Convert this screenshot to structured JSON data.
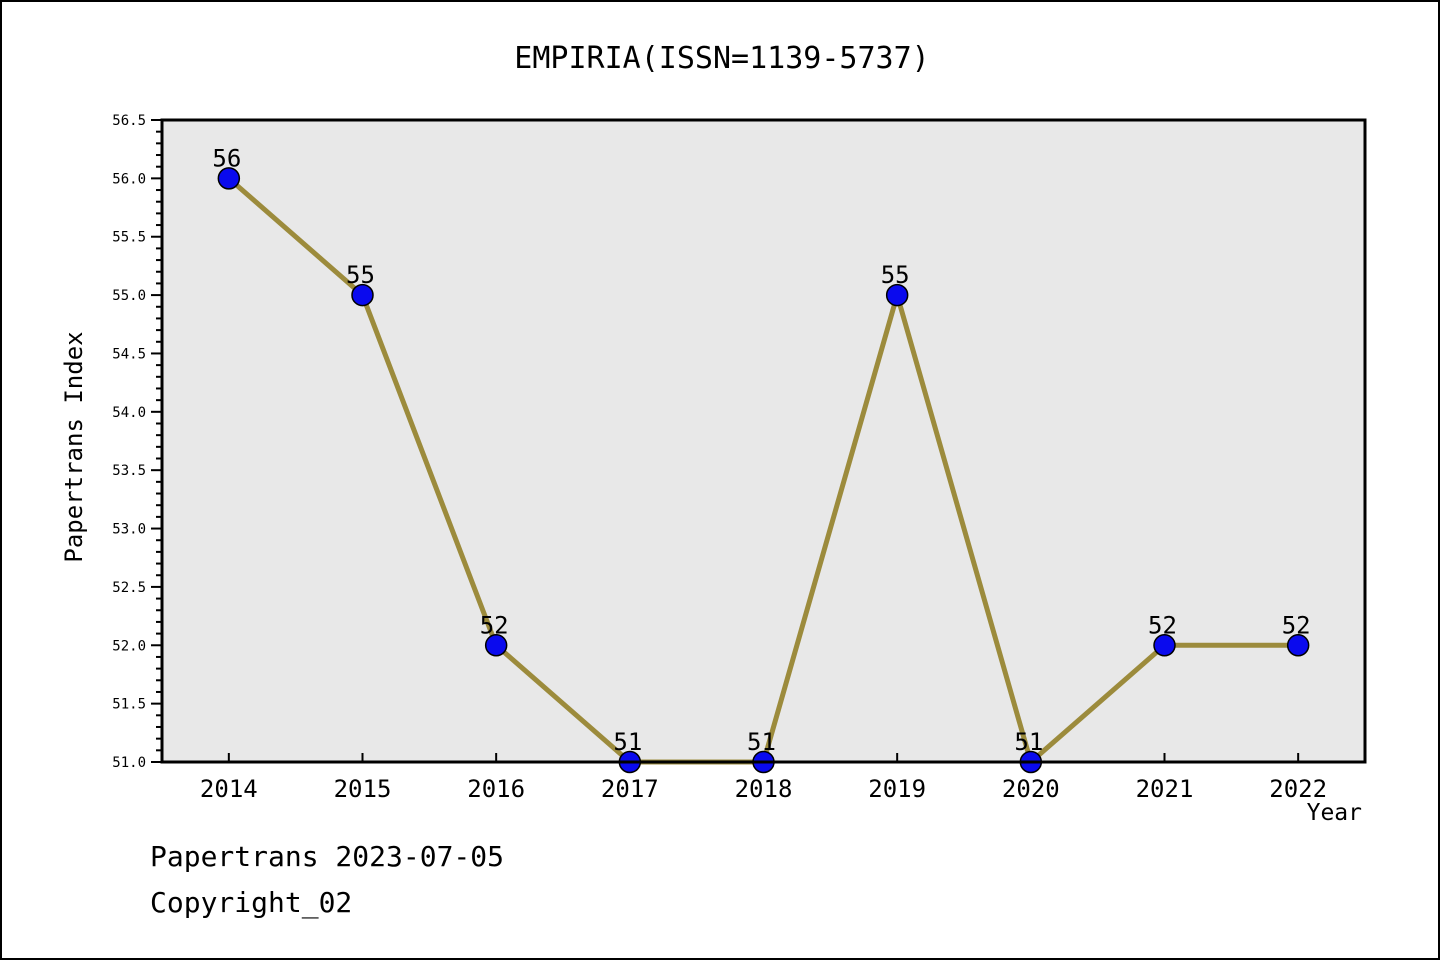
{
  "page": {
    "footer_line1": "Papertrans 2023-07-05",
    "footer_line2": "Copyright_02"
  },
  "chart_data": {
    "type": "line",
    "title": "EMPIRIA(ISSN=1139-5737)",
    "xlabel": "Year",
    "ylabel": "Papertrans Index",
    "x": [
      2014,
      2015,
      2016,
      2017,
      2018,
      2019,
      2020,
      2021,
      2022
    ],
    "values": [
      56,
      55,
      52,
      51,
      51,
      55,
      51,
      52,
      52
    ],
    "point_labels": [
      "56",
      "55",
      "52",
      "51",
      "51",
      "55",
      "51",
      "52",
      "52"
    ],
    "xlim": [
      2013.5,
      2022.5
    ],
    "ylim": [
      51.0,
      56.5
    ],
    "y_major_step": 0.5,
    "y_minor_step": 0.1,
    "y_tick_labels": [
      "51.0",
      "51.5",
      "52.0",
      "52.5",
      "53.0",
      "53.5",
      "54.0",
      "54.5",
      "55.0",
      "55.5",
      "56.0",
      "56.5"
    ],
    "grid": false,
    "legend": "none",
    "colors": {
      "line": "#9c8b3c",
      "marker_fill": "#0a0aee",
      "marker_edge": "#000000",
      "plot_background": "#e8e8e8",
      "axis": "#000000",
      "text": "#000000"
    }
  }
}
